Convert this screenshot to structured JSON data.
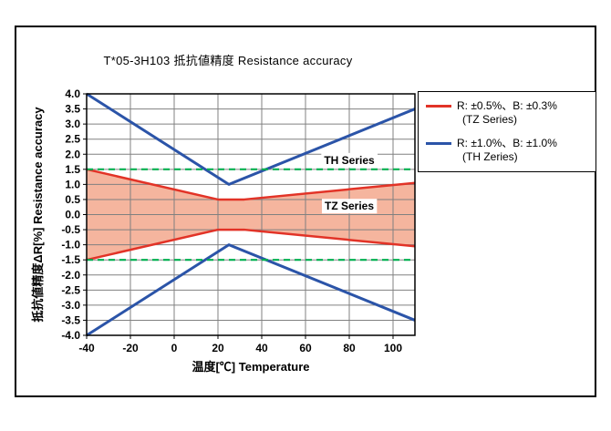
{
  "figure": {
    "title": "T*05-3H103 抵抗値精度 Resistance accuracy"
  },
  "legend": {
    "items": [
      {
        "color": "#e23327",
        "line1": "R: ±0.5%、B: ±0.3%",
        "line2": "(TZ Series)"
      },
      {
        "color": "#2b54a8",
        "line1": "R: ±1.0%、B: ±1.0%",
        "line2": "(TH Zeries)"
      }
    ]
  },
  "chart_data": {
    "type": "line",
    "title": "T*05-3H103 抵抗値精度 Resistance accuracy",
    "xlabel": "温度[℃]  Temperature",
    "ylabel": "抵抗値精度ΔR[%] Resistance accuracy",
    "xlim": [
      -40,
      110
    ],
    "ylim": [
      -4.0,
      4.0
    ],
    "x_ticks": [
      -40,
      -20,
      0,
      20,
      40,
      60,
      80,
      100
    ],
    "y_tick_step": 0.5,
    "grid": true,
    "grid_color": "#808080",
    "plot_bg": "#ffffff",
    "fill_color": "#f5b59e",
    "series": [
      {
        "name": "TZ-upper",
        "color": "#e23327",
        "width": 2.5,
        "x": [
          -40,
          20,
          32,
          110
        ],
        "y": [
          1.5,
          0.5,
          0.5,
          1.05
        ]
      },
      {
        "name": "TZ-lower",
        "color": "#e23327",
        "width": 2.5,
        "x": [
          -40,
          20,
          32,
          110
        ],
        "y": [
          -1.5,
          -0.5,
          -0.5,
          -1.05
        ]
      },
      {
        "name": "TH-upper",
        "color": "#2b54a8",
        "width": 3,
        "x": [
          -40,
          25,
          110
        ],
        "y": [
          4.0,
          1.0,
          3.5
        ]
      },
      {
        "name": "TH-lower",
        "color": "#2b54a8",
        "width": 3,
        "x": [
          -40,
          25,
          110
        ],
        "y": [
          -4.0,
          -1.0,
          -3.5
        ]
      },
      {
        "name": "limit-upper",
        "color": "#00b050",
        "width": 2.2,
        "dash": "7 5",
        "x": [
          -40,
          110
        ],
        "y": [
          1.5,
          1.5
        ]
      },
      {
        "name": "limit-lower",
        "color": "#00b050",
        "width": 2.2,
        "dash": "7 5",
        "x": [
          -40,
          110
        ],
        "y": [
          -1.5,
          -1.5
        ]
      }
    ],
    "fill_between": {
      "upper": "TZ-upper",
      "lower": "TZ-lower"
    },
    "annotations": [
      {
        "text": "TH Series",
        "x": 80,
        "y": 1.8
      },
      {
        "text": "TZ Series",
        "x": 80,
        "y": 0.28
      }
    ]
  }
}
